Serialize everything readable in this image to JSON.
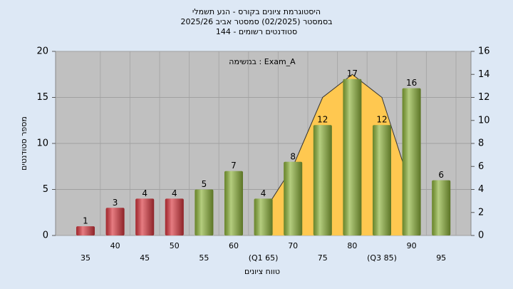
{
  "chart_data": {
    "type": "bar",
    "title": [
      "היסטוגרמת ציונים בקורס - הנע תשמלי",
      "בסמסטר  (02/2025)  סמסטר אביב 2025/26",
      "סטודנטים רשומים - 144"
    ],
    "annotation": "במשימה : Exam_A",
    "x_label": "טווח ציונים",
    "y_label": "מספר סטודנטים",
    "categories": [
      "35",
      "40",
      "45",
      "50",
      "55",
      "60",
      "(Q1 65)",
      "70",
      "75",
      "80",
      "(Q3 85)",
      "90",
      "95"
    ],
    "values": [
      1,
      3,
      4,
      4,
      5,
      7,
      4,
      8,
      12,
      17,
      12,
      16,
      6
    ],
    "colors": [
      "#d9363e",
      "#d9363e",
      "#d9363e",
      "#d9363e",
      "#8db33a",
      "#8db33a",
      "#8db33a",
      "#8db33a",
      "#8db33a",
      "#8db33a",
      "#8db33a",
      "#8db33a",
      "#8db33a"
    ],
    "overlay": {
      "axis": "y2",
      "color": "#ffc850",
      "line_color": "#333333",
      "values": [
        null,
        null,
        null,
        null,
        null,
        null,
        2,
        6,
        12,
        14,
        12,
        4,
        null
      ]
    },
    "ylim": [
      0,
      20
    ],
    "yticks": [
      0,
      5,
      10,
      15,
      20
    ],
    "y2lim": [
      0,
      16
    ],
    "y2ticks": [
      0,
      2,
      4,
      6,
      8,
      10,
      12,
      14,
      16
    ],
    "grid": true
  }
}
